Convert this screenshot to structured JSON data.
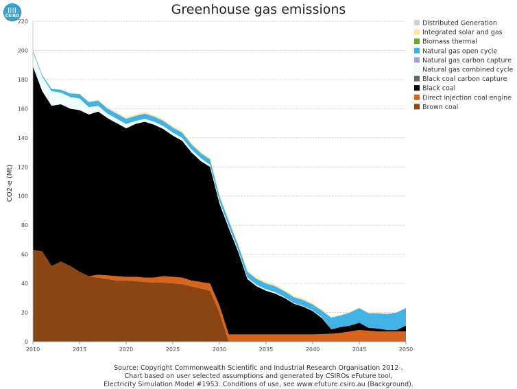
{
  "logo": {
    "text": "CSIRO"
  },
  "chart_data": {
    "type": "area",
    "stacked": true,
    "title": "Greenhouse gas emissions",
    "ylabel": "CO2-e (Mt)",
    "xlabel": "",
    "xlim": [
      2010,
      2050
    ],
    "ylim": [
      0,
      220
    ],
    "x_ticks": [
      2010,
      2015,
      2020,
      2025,
      2030,
      2035,
      2040,
      2045,
      2050
    ],
    "y_ticks": [
      0,
      20,
      40,
      60,
      80,
      100,
      120,
      140,
      160,
      180,
      200,
      220
    ],
    "grid": "horizontal-dashed",
    "legend_position": "top-right",
    "x": [
      2010,
      2011,
      2012,
      2013,
      2014,
      2015,
      2016,
      2017,
      2018,
      2019,
      2020,
      2021,
      2022,
      2023,
      2024,
      2025,
      2026,
      2027,
      2028,
      2029,
      2030,
      2031,
      2032,
      2033,
      2034,
      2035,
      2036,
      2037,
      2038,
      2039,
      2040,
      2041,
      2042,
      2043,
      2044,
      2045,
      2046,
      2047,
      2048,
      2049,
      2050
    ],
    "series": [
      {
        "name": "Brown coal",
        "color": "#8b4513",
        "values": [
          63,
          62,
          52,
          55,
          52,
          48,
          45,
          44,
          43,
          42,
          42,
          41.5,
          41,
          40.5,
          40.5,
          40,
          39.5,
          38,
          36.5,
          35,
          20,
          0,
          0,
          0,
          0,
          0,
          0,
          0,
          0,
          0,
          0,
          0,
          0,
          0,
          0,
          0,
          0,
          0,
          0,
          0,
          0
        ]
      },
      {
        "name": "Direct injection coal engine",
        "color": "#d8651d",
        "values": [
          0,
          0,
          0,
          0,
          0,
          0,
          0,
          2,
          2.5,
          3,
          2.5,
          3,
          3,
          3.5,
          4.5,
          4.5,
          4.5,
          4,
          4.5,
          5,
          5,
          5,
          5,
          5,
          5,
          5,
          5,
          5,
          5,
          5,
          5,
          5.2,
          5.5,
          6,
          7,
          8,
          7.5,
          7,
          7,
          7,
          7
        ]
      },
      {
        "name": "Black coal",
        "color": "#000000",
        "values": [
          126,
          110,
          110,
          108,
          108,
          111,
          111,
          112,
          108,
          105,
          102,
          105,
          107,
          105,
          101,
          97,
          94,
          88,
          83,
          80,
          70,
          73,
          57,
          38,
          33,
          30,
          28,
          25,
          21,
          19,
          16,
          11,
          3,
          4,
          4,
          5,
          2,
          2,
          1,
          1,
          4
        ]
      },
      {
        "name": "Black coal carbon capture",
        "color": "#666666",
        "values": [
          0,
          0,
          0,
          0,
          0,
          0,
          0,
          0,
          0,
          0,
          0,
          0,
          0,
          0,
          0,
          0,
          0,
          0,
          0,
          0,
          0,
          0,
          0,
          0,
          0,
          0,
          0,
          0,
          0,
          0,
          0,
          0,
          0,
          0,
          0,
          0,
          0,
          0,
          0,
          0,
          0
        ]
      },
      {
        "name": "Natural gas combined cycle",
        "color": "#eefcfc",
        "values": [
          10,
          10,
          10,
          8,
          8,
          8,
          5,
          4,
          3,
          3,
          3,
          2,
          2,
          2,
          2,
          2,
          2,
          2,
          2,
          1.5,
          1.5,
          1.5,
          1,
          1,
          1,
          1,
          1,
          0.5,
          0.5,
          0.5,
          0.5,
          0.5,
          0,
          0,
          0,
          0,
          0,
          0,
          0,
          0,
          0
        ]
      },
      {
        "name": "Natural gas carbon capture",
        "color": "#99a8d8",
        "values": [
          0,
          0,
          0,
          0,
          0,
          0,
          0,
          0,
          0,
          0,
          0,
          0,
          0,
          0,
          0,
          0,
          0,
          0,
          0,
          0,
          0,
          0,
          0,
          0,
          0,
          0,
          0,
          0,
          0,
          0,
          0,
          0,
          0,
          0,
          0,
          0,
          0,
          0,
          0,
          0,
          0
        ]
      },
      {
        "name": "Natural gas open cycle",
        "color": "#41b2e6",
        "values": [
          1,
          1,
          1.5,
          2,
          2.5,
          3,
          3.5,
          3.5,
          3.5,
          3.5,
          3.5,
          3.5,
          3.5,
          3.5,
          3.5,
          3.5,
          3.5,
          3.5,
          3.5,
          3.5,
          3.5,
          3.5,
          3.5,
          4,
          4,
          4,
          4,
          4,
          4,
          4,
          4,
          4.5,
          8,
          8,
          9,
          10,
          10,
          10.5,
          11,
          12,
          12
        ]
      },
      {
        "name": "Biomass thermal",
        "color": "#6aaa2a",
        "values": [
          0,
          0,
          0,
          0,
          0,
          0,
          0,
          0,
          0,
          0,
          0,
          0,
          0,
          0,
          0,
          0,
          0,
          0,
          0,
          0,
          0,
          0,
          0,
          0,
          0,
          0,
          0,
          0,
          0,
          0,
          0,
          0,
          0,
          0,
          0,
          0,
          0,
          0,
          0,
          0,
          0
        ]
      },
      {
        "name": "Integrated solar and gas",
        "color": "#fde3a0",
        "values": [
          0,
          0,
          0,
          0,
          0,
          0.5,
          0.5,
          0.8,
          0.8,
          1,
          1,
          1,
          1,
          1,
          1,
          1,
          1,
          1,
          1,
          1,
          1,
          1,
          1,
          1,
          1,
          1,
          1,
          1,
          1,
          1,
          1,
          1,
          0.5,
          0.5,
          0.5,
          0.5,
          0.3,
          0.3,
          0.3,
          0.3,
          0.3
        ]
      },
      {
        "name": "Distributed Generation",
        "color": "#d0d0d0",
        "values": [
          0,
          0,
          0,
          0,
          0,
          0,
          0,
          0,
          0,
          0,
          0,
          0,
          0,
          0,
          0,
          0,
          0,
          0,
          0,
          0,
          0,
          0,
          0,
          0,
          0,
          0,
          0,
          0,
          0,
          0,
          0,
          0,
          0,
          0,
          0,
          0,
          0,
          0,
          0,
          0,
          0
        ]
      }
    ],
    "legend_order": [
      "Distributed Generation",
      "Integrated solar and gas",
      "Biomass thermal",
      "Natural gas open cycle",
      "Natural gas carbon capture",
      "Natural gas combined cycle",
      "Black coal carbon capture",
      "Black coal",
      "Direct injection coal engine",
      "Brown coal"
    ]
  },
  "footer": {
    "line1": "Source: Copyright Commonwealth Scientific and Industrial Research Organisation 2012-.",
    "line2": "Chart based on user selected assumptions and generated by CSIROs eFuture tool,",
    "line3": "Electricity Simulation Model #1953. Conditions of use, see www.efuture.csiro.au (Background)."
  }
}
